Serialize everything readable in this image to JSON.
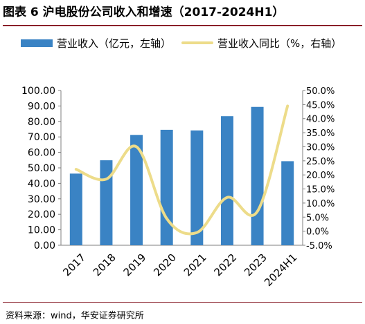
{
  "title": "图表 6 沪电股份公司收入和增速（2017-2024H1）",
  "source": "资料来源：wind，华安证券研究所",
  "colors": {
    "bar": "#3a83c4",
    "line": "#eddc8a",
    "axis": "#7f7f7f",
    "accent_rule": "#8a1f2a"
  },
  "chart_data": {
    "type": "bar",
    "categories": [
      "2017",
      "2018",
      "2019",
      "2020",
      "2021",
      "2022",
      "2023",
      "2024H1"
    ],
    "series": [
      {
        "name": "营业收入（亿元，左轴）",
        "type": "bar",
        "axis": "left",
        "values": [
          46.3,
          54.9,
          71.3,
          74.6,
          74.2,
          83.4,
          89.4,
          54.3
        ]
      },
      {
        "name": "营业收入同比（%，右轴）",
        "type": "line",
        "axis": "right",
        "values": [
          22.0,
          18.5,
          30.0,
          4.5,
          -0.5,
          12.0,
          7.0,
          44.5
        ]
      }
    ],
    "left_axis": {
      "ylim": [
        0,
        100
      ],
      "ticks": [
        "0.00",
        "10.00",
        "20.00",
        "30.00",
        "40.00",
        "50.00",
        "60.00",
        "70.00",
        "80.00",
        "90.00",
        "100.00"
      ]
    },
    "right_axis": {
      "ylim": [
        -5,
        50
      ],
      "ticks": [
        "-5.0%",
        "0.0%",
        "5.0%",
        "10.0%",
        "15.0%",
        "20.0%",
        "25.0%",
        "30.0%",
        "35.0%",
        "40.0%",
        "45.0%",
        "50.0%"
      ]
    },
    "legend_position": "top",
    "grid": false
  }
}
